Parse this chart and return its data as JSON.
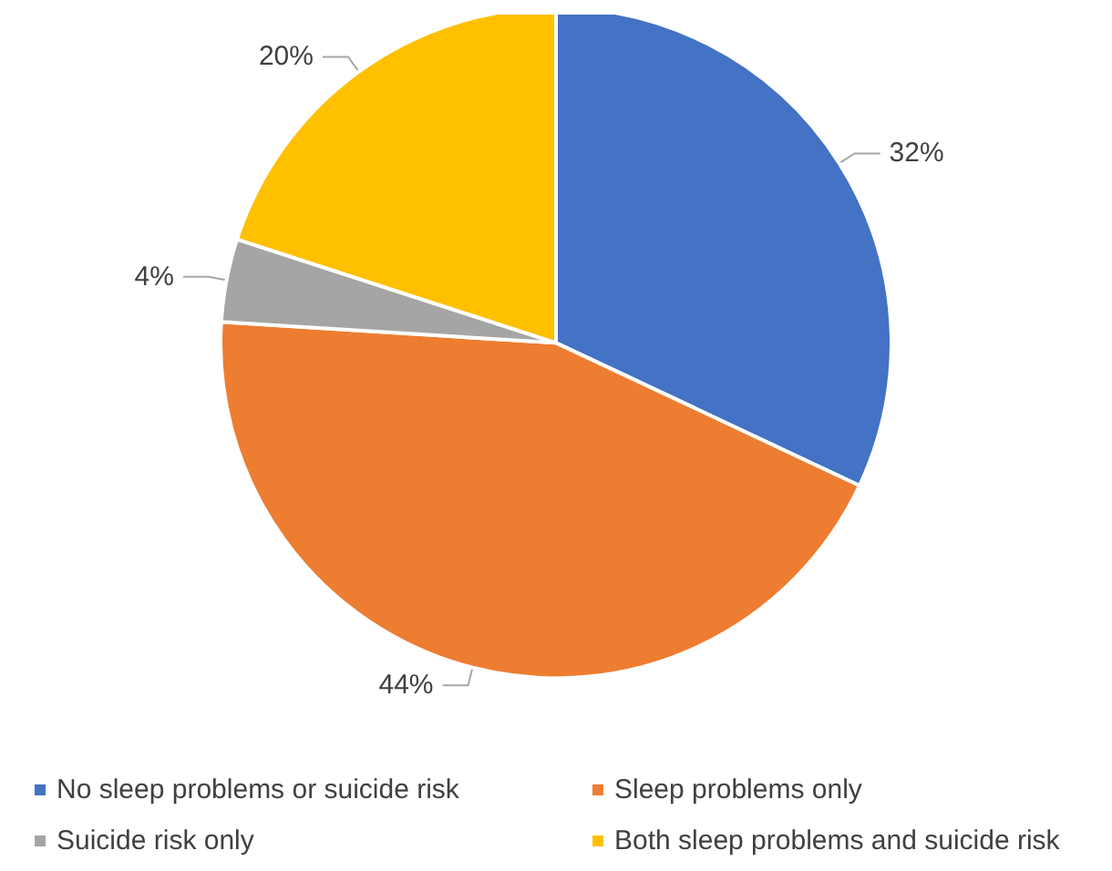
{
  "chart_data": {
    "type": "pie",
    "categories": [
      "No sleep problems or suicide risk",
      "Sleep problems only",
      "Suicide risk only",
      "Both sleep problems and suicide risk"
    ],
    "values": [
      32,
      44,
      4,
      20
    ],
    "colors": [
      "#4472c4",
      "#ed7d31",
      "#a5a5a5",
      "#ffc000"
    ],
    "value_labels": [
      "32%",
      "44%",
      "4%",
      "20%"
    ],
    "legend": "bottom"
  }
}
